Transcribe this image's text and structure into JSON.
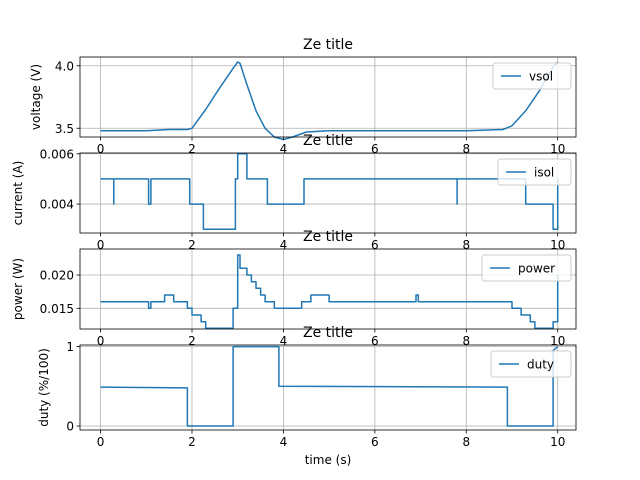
{
  "chart_data": [
    {
      "type": "line",
      "title": "Ze title",
      "xlabel": "",
      "ylabel": "voltage (V)",
      "xlim": [
        -0.45,
        10.4
      ],
      "ylim": [
        3.43,
        4.07
      ],
      "xticks": [
        0,
        2,
        4,
        6,
        8,
        10
      ],
      "xtick_labels": [
        "0",
        "2",
        "4",
        "6",
        "8",
        "10"
      ],
      "yticks": [
        3.5,
        4.0
      ],
      "ytick_labels": [
        "3.5",
        "4.0"
      ],
      "grid": true,
      "legend": "top-right",
      "series": [
        {
          "name": "vsol",
          "color": "#1f77b4",
          "x": [
            0,
            0.5,
            1.0,
            1.5,
            1.9,
            2.0,
            2.3,
            2.6,
            2.9,
            3.0,
            3.05,
            3.2,
            3.4,
            3.6,
            3.8,
            4.0,
            4.2,
            4.5,
            5.0,
            6.0,
            7.0,
            8.0,
            8.8,
            9.0,
            9.3,
            9.6,
            9.9,
            10.0
          ],
          "values": [
            3.48,
            3.48,
            3.48,
            3.49,
            3.49,
            3.5,
            3.65,
            3.82,
            3.98,
            4.03,
            4.02,
            3.85,
            3.64,
            3.5,
            3.43,
            3.41,
            3.43,
            3.47,
            3.48,
            3.48,
            3.48,
            3.48,
            3.49,
            3.52,
            3.64,
            3.8,
            3.99,
            4.03
          ]
        }
      ]
    },
    {
      "type": "line",
      "title": "Ze title",
      "xlabel": "",
      "ylabel": "current (A)",
      "xlim": [
        -0.45,
        10.4
      ],
      "ylim": [
        0.00285,
        0.00603
      ],
      "xticks": [
        0,
        2,
        4,
        6,
        8,
        10
      ],
      "xtick_labels": [
        "0",
        "2",
        "4",
        "6",
        "8",
        "10"
      ],
      "yticks": [
        0.004,
        0.006
      ],
      "ytick_labels": [
        "0.004",
        "0.006"
      ],
      "grid": true,
      "legend": "top-right",
      "series": [
        {
          "name": "isol",
          "color": "#1f77b4",
          "step": true,
          "x": [
            0,
            0.29,
            0.29,
            0.31,
            1.05,
            1.1,
            1.1,
            1.15,
            1.95,
            2.0,
            2.25,
            2.9,
            2.95,
            3.0,
            3.2,
            3.25,
            3.65,
            4.0,
            4.45,
            7.8,
            7.8,
            7.82,
            9.3,
            9.9,
            10.0
          ],
          "values": [
            0.005,
            0.004,
            0.005,
            0.005,
            0.004,
            0.004,
            0.005,
            0.005,
            0.004,
            0.004,
            0.003,
            0.003,
            0.005,
            0.006,
            0.005,
            0.005,
            0.004,
            0.004,
            0.005,
            0.004,
            0.005,
            0.005,
            0.004,
            0.003,
            0.005
          ]
        }
      ]
    },
    {
      "type": "line",
      "title": "Ze title",
      "xlabel": "",
      "ylabel": "power (W)",
      "xlim": [
        -0.45,
        10.4
      ],
      "ylim": [
        0.0119,
        0.0239
      ],
      "xticks": [
        0,
        2,
        4,
        6,
        8,
        10
      ],
      "xtick_labels": [
        "0",
        "2",
        "4",
        "6",
        "8",
        "10"
      ],
      "yticks": [
        0.015,
        0.02
      ],
      "ytick_labels": [
        "0.015",
        "0.020"
      ],
      "grid": true,
      "legend": "top-right",
      "series": [
        {
          "name": "power",
          "color": "#1f77b4",
          "step": true,
          "x": [
            0,
            1.05,
            1.1,
            1.4,
            1.6,
            1.9,
            2.0,
            2.1,
            2.2,
            2.3,
            2.5,
            2.9,
            3.0,
            3.05,
            3.2,
            3.3,
            3.4,
            3.5,
            3.6,
            3.7,
            3.8,
            4.0,
            4.4,
            4.6,
            5.0,
            6.0,
            6.9,
            6.95,
            8.8,
            9.0,
            9.2,
            9.4,
            9.5,
            9.9,
            10.0
          ],
          "values": [
            0.016,
            0.015,
            0.016,
            0.017,
            0.016,
            0.015,
            0.014,
            0.014,
            0.013,
            0.012,
            0.012,
            0.015,
            0.023,
            0.021,
            0.02,
            0.019,
            0.018,
            0.017,
            0.016,
            0.016,
            0.015,
            0.015,
            0.016,
            0.017,
            0.016,
            0.016,
            0.017,
            0.016,
            0.016,
            0.015,
            0.014,
            0.013,
            0.012,
            0.013,
            0.02
          ]
        }
      ]
    },
    {
      "type": "line",
      "title": "Ze title",
      "xlabel": "time (s)",
      "ylabel": "duty (%/100)",
      "xlim": [
        -0.45,
        10.4
      ],
      "ylim": [
        -0.05,
        1.02
      ],
      "xticks": [
        0,
        2,
        4,
        6,
        8,
        10
      ],
      "xtick_labels": [
        "0",
        "2",
        "4",
        "6",
        "8",
        "10"
      ],
      "yticks": [
        0,
        1
      ],
      "ytick_labels": [
        "0",
        "1"
      ],
      "grid": true,
      "legend": "top-right",
      "series": [
        {
          "name": "duty",
          "color": "#1f77b4",
          "x": [
            0,
            1.9,
            1.9,
            2.9,
            2.9,
            3.9,
            3.9,
            8.9,
            8.9,
            9.9,
            9.9,
            10.0
          ],
          "values": [
            0.49,
            0.48,
            0.0,
            0.0,
            1.0,
            1.0,
            0.5,
            0.49,
            0.0,
            0.0,
            0.95,
            1.0
          ]
        }
      ]
    }
  ]
}
